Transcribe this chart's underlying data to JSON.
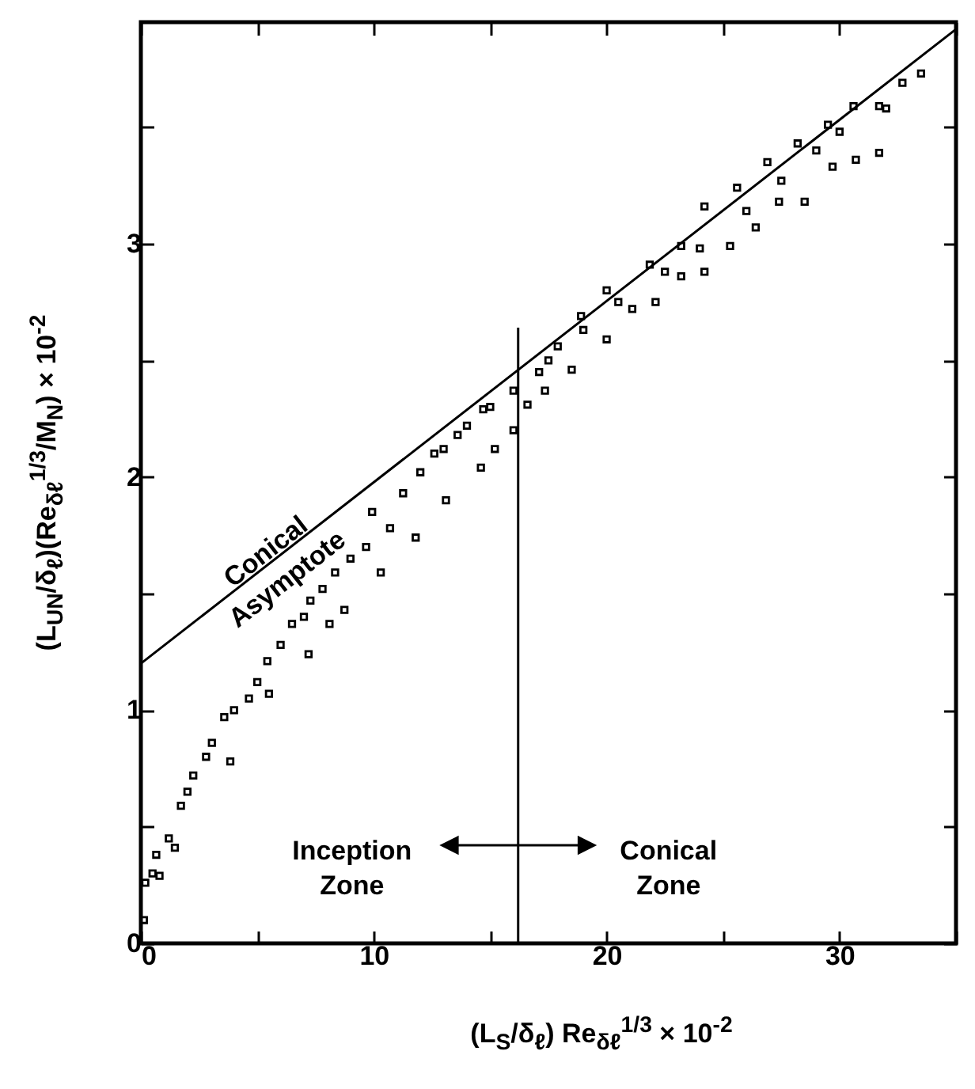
{
  "chart_data": {
    "type": "scatter",
    "xlabel": "(L$_{S}$/δ$_{ℓ}$) Re$_{δℓ}$$^{1/3}$ × 10$^{-2}$",
    "ylabel": "(L$_{UN}$/δ$_{ℓ}$)(Re$_{δℓ}$$^{1/3}$/M$_{N}$) × 10$^{-2}$",
    "xlim": [
      0,
      35
    ],
    "ylim": [
      0,
      3.95
    ],
    "xticks": [
      0,
      {
        "value": 5,
        "label": null
      },
      10,
      {
        "value": 15,
        "label": null
      },
      20,
      {
        "value": 25,
        "label": null
      },
      30,
      {
        "value": 35,
        "label": null
      }
    ],
    "yticks": [
      0,
      {
        "value": 0.5,
        "label": null
      },
      1,
      {
        "value": 1.5,
        "label": null
      },
      2,
      {
        "value": 2.5,
        "label": null
      },
      3,
      {
        "value": 3.5,
        "label": null
      }
    ],
    "series": [
      {
        "marker": "square",
        "color": "#000000",
        "x": [
          0.13,
          0.19,
          0.5,
          0.66,
          0.8,
          1.2,
          1.46,
          1.72,
          2.0,
          2.25,
          2.8,
          3.05,
          3.58,
          3.84,
          4.0,
          4.64,
          5.0,
          5.43,
          5.5,
          6.0,
          6.49,
          7.0,
          7.2,
          7.28,
          7.8,
          8.1,
          8.34,
          8.74,
          9.0,
          9.67,
          9.93,
          10.3,
          10.7,
          11.26,
          11.8,
          12.0,
          12.6,
          13.0,
          13.1,
          13.6,
          14.0,
          14.6,
          14.7,
          15.0,
          15.2,
          16.0,
          16.0,
          16.6,
          17.1,
          17.35,
          17.5,
          17.9,
          18.5,
          18.9,
          19.0,
          20.0,
          20.0,
          20.5,
          21.1,
          21.85,
          22.1,
          22.5,
          23.2,
          23.2,
          24.0,
          24.2,
          24.2,
          25.3,
          25.6,
          26.0,
          26.4,
          26.9,
          27.4,
          27.5,
          28.2,
          28.5,
          29.0,
          29.5,
          29.7,
          30.0,
          30.6,
          30.7,
          31.7,
          31.7,
          32.0,
          32.7,
          33.5
        ],
        "values": [
          0.1,
          0.26,
          0.3,
          0.38,
          0.29,
          0.45,
          0.41,
          0.59,
          0.65,
          0.72,
          0.8,
          0.86,
          0.97,
          0.78,
          1.0,
          1.05,
          1.12,
          1.21,
          1.07,
          1.28,
          1.37,
          1.4,
          1.24,
          1.47,
          1.52,
          1.37,
          1.59,
          1.43,
          1.65,
          1.7,
          1.85,
          1.59,
          1.78,
          1.93,
          1.74,
          2.02,
          2.1,
          2.12,
          1.9,
          2.18,
          2.22,
          2.04,
          2.29,
          2.3,
          2.12,
          2.37,
          2.2,
          2.31,
          2.45,
          2.37,
          2.5,
          2.56,
          2.46,
          2.69,
          2.63,
          2.59,
          2.8,
          2.75,
          2.72,
          2.91,
          2.75,
          2.88,
          2.86,
          2.99,
          2.98,
          2.88,
          3.16,
          2.99,
          3.24,
          3.14,
          3.07,
          3.35,
          3.18,
          3.27,
          3.43,
          3.18,
          3.4,
          3.51,
          3.33,
          3.48,
          3.59,
          3.36,
          3.39,
          3.59,
          3.58,
          3.69,
          3.73
        ]
      },
      {
        "type": "line",
        "color": "#000000",
        "x": [
          0,
          35
        ],
        "values": [
          1.2,
          3.92
        ]
      },
      {
        "type": "line",
        "color": "#000000",
        "x": [
          16.2,
          16.2
        ],
        "values": [
          0,
          2.64
        ]
      }
    ],
    "annotations": [
      "Conical Asymptote",
      "Inception Zone",
      "Conical Zone"
    ]
  }
}
